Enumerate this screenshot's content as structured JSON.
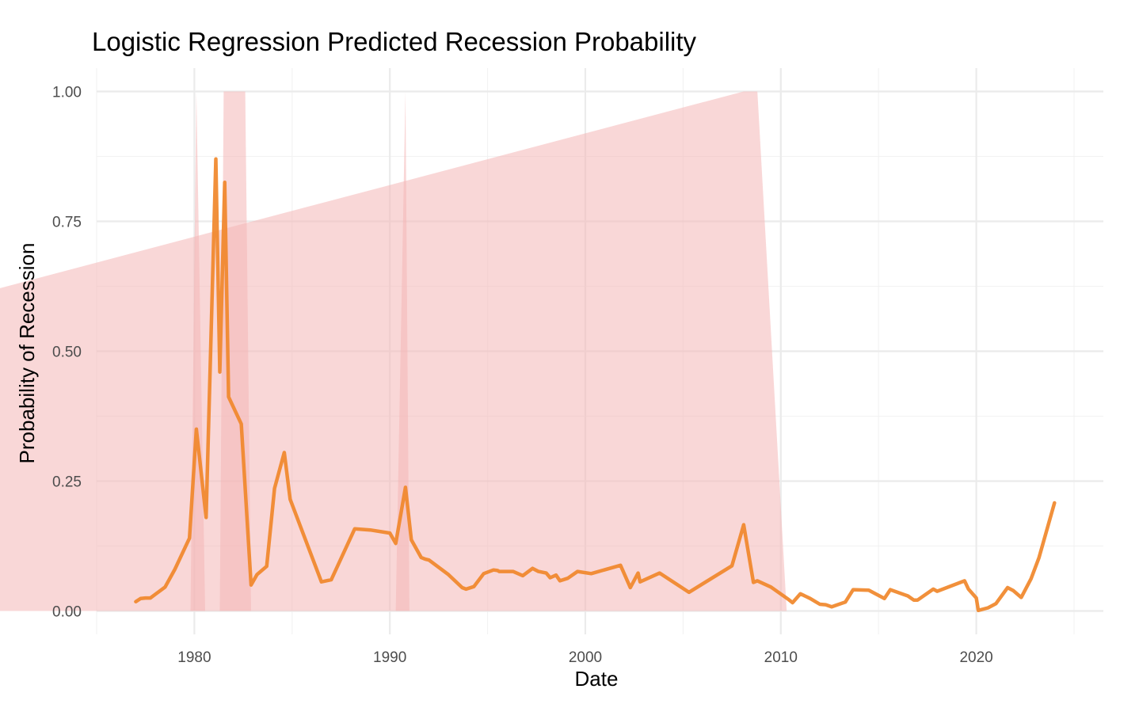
{
  "chart_data": {
    "type": "line",
    "title": "Logistic Regression Predicted Recession Probability",
    "xlabel": "Date",
    "ylabel": "Probability of Recession",
    "xlim": [
      1975,
      2026.5
    ],
    "ylim": [
      -0.045,
      1.045
    ],
    "x_ticks": [
      1980,
      1990,
      2000,
      2010,
      2020
    ],
    "x_tick_labels": [
      "1980",
      "1990",
      "2000",
      "2010",
      "2020"
    ],
    "y_ticks": [
      0,
      0.25,
      0.5,
      0.75,
      1.0
    ],
    "y_tick_labels": [
      "0.00",
      "0.25",
      "0.50",
      "0.75",
      "1.00"
    ],
    "grid": true,
    "legend": "none",
    "colors": {
      "line": "#F0872A",
      "recession": "#F4B6B6"
    },
    "recession_bands": [
      {
        "x": [
          1979.8,
          1980.1,
          1980.55
        ],
        "y": [
          0,
          1,
          0
        ]
      },
      {
        "x": [
          1981.3,
          1981.5,
          1982.6,
          1982.9
        ],
        "y": [
          0,
          1,
          1,
          0
        ]
      },
      {
        "x": [
          1990.3,
          1990.8,
          1991.0
        ],
        "y": [
          0,
          1,
          0
        ]
      },
      {
        "x": [
          1907.6,
          2008.1,
          2008.8,
          2010.3
        ],
        "y": [
          0,
          1,
          1,
          0
        ]
      }
    ],
    "series": [
      {
        "x": [
          1977.0,
          1977.25,
          1977.5,
          1977.75,
          1978.0,
          1978.5,
          1979.0,
          1979.75,
          1980.1,
          1980.6,
          1981.1,
          1981.3,
          1981.55,
          1981.75,
          1982.4,
          1982.9,
          1983.2,
          1983.7,
          1984.1,
          1984.6,
          1984.9,
          1986.5,
          1987.0,
          1988.2,
          1989.0,
          1990.0,
          1990.3,
          1990.8,
          1991.1,
          1991.6,
          1991.8,
          1992.0,
          1993.0,
          1993.7,
          1993.9,
          1994.3,
          1994.8,
          1995.3,
          1995.5,
          1995.6,
          1996.3,
          1996.8,
          1997.3,
          1997.6,
          1998.0,
          1998.2,
          1998.5,
          1998.7,
          1999.1,
          1999.6,
          2000.3,
          2001.8,
          2002.3,
          2002.7,
          2002.8,
          2003.8,
          2005.3,
          2007.5,
          2008.1,
          2008.6,
          2008.8,
          2009.5,
          2010.4,
          2010.6,
          2011.0,
          2011.5,
          2012.0,
          2012.3,
          2012.6,
          2012.9,
          2013.3,
          2013.7,
          2014.5,
          2015.3,
          2015.6,
          2016.5,
          2016.8,
          2017.0,
          2017.8,
          2018.0,
          2019.4,
          2019.6,
          2020.0,
          2020.1,
          2020.6,
          2021.0,
          2021.6,
          2021.9,
          2022.3,
          2022.8,
          2023.2,
          2024.0
        ],
        "values": [
          0.018,
          0.024,
          0.025,
          0.025,
          0.032,
          0.046,
          0.08,
          0.14,
          0.35,
          0.18,
          0.87,
          0.46,
          0.825,
          0.412,
          0.36,
          0.05,
          0.07,
          0.086,
          0.236,
          0.305,
          0.215,
          0.056,
          0.06,
          0.158,
          0.156,
          0.15,
          0.13,
          0.238,
          0.137,
          0.103,
          0.1,
          0.098,
          0.07,
          0.045,
          0.042,
          0.047,
          0.072,
          0.079,
          0.078,
          0.076,
          0.076,
          0.068,
          0.082,
          0.076,
          0.073,
          0.064,
          0.069,
          0.058,
          0.063,
          0.076,
          0.072,
          0.088,
          0.045,
          0.073,
          0.056,
          0.073,
          0.036,
          0.087,
          0.166,
          0.055,
          0.058,
          0.046,
          0.022,
          0.016,
          0.033,
          0.024,
          0.013,
          0.012,
          0.008,
          0.012,
          0.017,
          0.041,
          0.04,
          0.024,
          0.041,
          0.029,
          0.021,
          0.021,
          0.042,
          0.038,
          0.058,
          0.042,
          0.025,
          0.001,
          0.006,
          0.014,
          0.045,
          0.039,
          0.026,
          0.062,
          0.102,
          0.208
        ]
      }
    ]
  }
}
